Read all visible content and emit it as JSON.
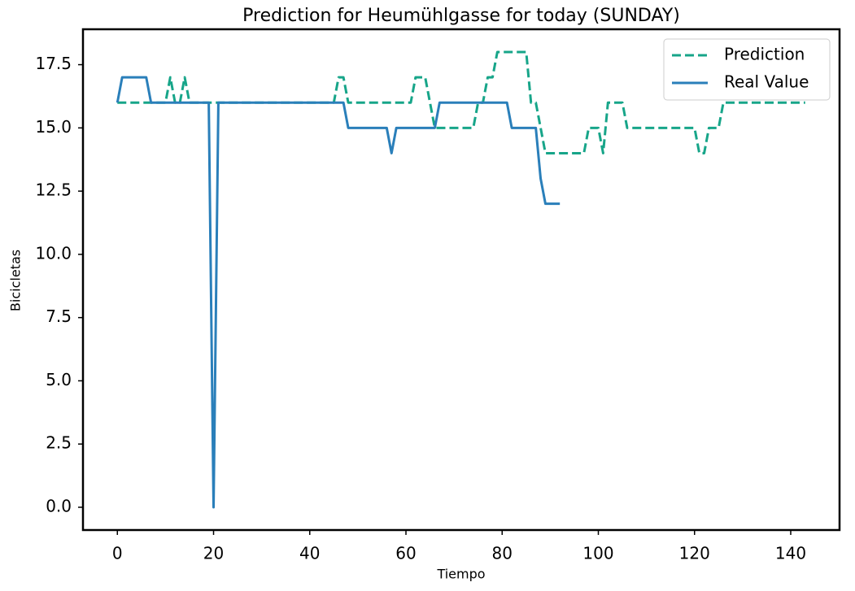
{
  "chart_data": {
    "type": "line",
    "title": "Prediction for Heumühlgasse for today (SUNDAY)",
    "x_label": "Tiempo",
    "y_label": "Bicicletas",
    "xlim": [
      -7.15,
      150.15
    ],
    "ylim": [
      -0.9,
      18.9
    ],
    "xticks": [
      0,
      20,
      40,
      60,
      80,
      100,
      120,
      140
    ],
    "yticks": [
      {
        "value": 0,
        "label": "0.0"
      },
      2.5,
      {
        "value": 5,
        "label": "5.0"
      },
      7.5,
      {
        "value": 10,
        "label": "10.0"
      },
      12.5,
      {
        "value": 15,
        "label": "15.0"
      },
      17.5
    ],
    "legend": "upper right",
    "series": [
      {
        "name": "Prediction",
        "color": "#17a589",
        "dash": true,
        "x": [
          0,
          1,
          2,
          3,
          4,
          5,
          6,
          7,
          8,
          9,
          10,
          11,
          12,
          13,
          14,
          15,
          16,
          17,
          18,
          19,
          20,
          21,
          22,
          23,
          24,
          25,
          26,
          27,
          28,
          29,
          30,
          31,
          32,
          33,
          34,
          35,
          36,
          37,
          38,
          39,
          40,
          41,
          42,
          43,
          44,
          45,
          46,
          47,
          48,
          49,
          50,
          51,
          52,
          53,
          54,
          55,
          56,
          57,
          58,
          59,
          60,
          61,
          62,
          63,
          64,
          65,
          66,
          67,
          68,
          69,
          70,
          71,
          72,
          73,
          74,
          75,
          76,
          77,
          78,
          79,
          80,
          81,
          82,
          83,
          84,
          85,
          86,
          87,
          88,
          89,
          90,
          91,
          92,
          93,
          94,
          95,
          96,
          97,
          98,
          99,
          100,
          101,
          102,
          103,
          104,
          105,
          106,
          107,
          108,
          109,
          110,
          111,
          112,
          113,
          114,
          115,
          116,
          117,
          118,
          119,
          120,
          121,
          122,
          123,
          124,
          125,
          126,
          127,
          128,
          129,
          130,
          131,
          132,
          133,
          134,
          135,
          136,
          137,
          138,
          139,
          140,
          141,
          142,
          143
        ],
        "values": [
          16,
          16,
          16,
          16,
          16,
          16,
          16,
          16,
          16,
          16,
          16,
          17,
          16,
          16,
          17,
          16,
          16,
          16,
          16,
          16,
          16,
          16,
          16,
          16,
          16,
          16,
          16,
          16,
          16,
          16,
          16,
          16,
          16,
          16,
          16,
          16,
          16,
          16,
          16,
          16,
          16,
          16,
          16,
          16,
          16,
          16,
          17,
          17,
          16,
          16,
          16,
          16,
          16,
          16,
          16,
          16,
          16,
          16,
          16,
          16,
          16,
          16,
          17,
          17,
          17,
          16,
          15,
          15,
          15,
          15,
          15,
          15,
          15,
          15,
          15,
          16,
          16,
          17,
          17,
          18,
          18,
          18,
          18,
          18,
          18,
          18,
          16,
          16,
          15,
          14,
          14,
          14,
          14,
          14,
          14,
          14,
          14,
          14,
          15,
          15,
          15,
          14,
          16,
          16,
          16,
          16,
          15,
          15,
          15,
          15,
          15,
          15,
          15,
          15,
          15,
          15,
          15,
          15,
          15,
          15,
          15,
          14,
          14,
          15,
          15,
          15,
          16,
          16,
          16,
          16,
          16,
          16,
          16,
          16,
          16,
          16,
          16,
          16,
          16,
          16,
          16,
          16,
          16,
          16
        ]
      },
      {
        "name": "Real Value",
        "color": "#2a7fba",
        "dash": false,
        "x": [
          0,
          1,
          2,
          3,
          4,
          5,
          6,
          7,
          8,
          9,
          10,
          11,
          12,
          13,
          14,
          15,
          16,
          17,
          18,
          19,
          20,
          21,
          22,
          23,
          24,
          25,
          26,
          27,
          28,
          29,
          30,
          31,
          32,
          33,
          34,
          35,
          36,
          37,
          38,
          39,
          40,
          41,
          42,
          43,
          44,
          45,
          46,
          47,
          48,
          49,
          50,
          51,
          52,
          53,
          54,
          55,
          56,
          57,
          58,
          59,
          60,
          61,
          62,
          63,
          64,
          65,
          66,
          67,
          68,
          69,
          70,
          71,
          72,
          73,
          74,
          75,
          76,
          77,
          78,
          79,
          80,
          81,
          82,
          83,
          84,
          85,
          86,
          87,
          88,
          89,
          90,
          91,
          92
        ],
        "values": [
          16,
          17,
          17,
          17,
          17,
          17,
          17,
          16,
          16,
          16,
          16,
          16,
          16,
          16,
          16,
          16,
          16,
          16,
          16,
          16,
          0,
          16,
          16,
          16,
          16,
          16,
          16,
          16,
          16,
          16,
          16,
          16,
          16,
          16,
          16,
          16,
          16,
          16,
          16,
          16,
          16,
          16,
          16,
          16,
          16,
          16,
          16,
          16,
          15,
          15,
          15,
          15,
          15,
          15,
          15,
          15,
          15,
          14,
          15,
          15,
          15,
          15,
          15,
          15,
          15,
          15,
          15,
          16,
          16,
          16,
          16,
          16,
          16,
          16,
          16,
          16,
          16,
          16,
          16,
          16,
          16,
          16,
          15,
          15,
          15,
          15,
          15,
          15,
          13,
          12,
          12,
          12,
          12
        ]
      }
    ]
  }
}
